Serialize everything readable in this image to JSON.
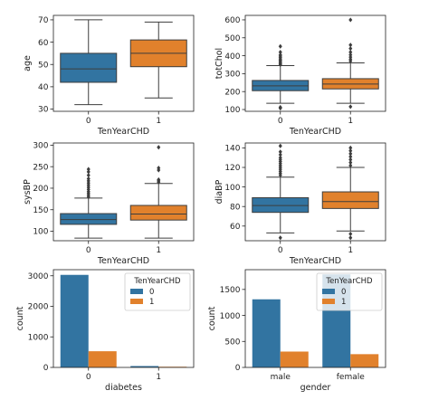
{
  "colors": {
    "class0": "#3274a1",
    "class1": "#e1812c"
  },
  "chart_data": [
    {
      "id": "age",
      "type": "boxplot",
      "xlabel": "TenYearCHD",
      "ylabel": "age",
      "categories": [
        "0",
        "1"
      ],
      "ylim": [
        29,
        72
      ],
      "yticks": [
        30,
        40,
        50,
        60,
        70
      ],
      "boxes": [
        {
          "category": "0",
          "whislo": 32,
          "q1": 42,
          "median": 48,
          "q3": 55,
          "whishi": 70,
          "fliers": []
        },
        {
          "category": "1",
          "whislo": 35,
          "q1": 49,
          "median": 55,
          "q3": 61,
          "whishi": 69,
          "fliers": []
        }
      ]
    },
    {
      "id": "totChol",
      "type": "boxplot",
      "xlabel": "TenYearCHD",
      "ylabel": "totChol",
      "categories": [
        "0",
        "1"
      ],
      "ylim": [
        90,
        625
      ],
      "yticks": [
        100,
        200,
        300,
        400,
        500,
        600
      ],
      "boxes": [
        {
          "category": "0",
          "whislo": 135,
          "q1": 205,
          "median": 232,
          "q3": 262,
          "whishi": 345,
          "fliers": [
            107,
            113,
            350,
            356,
            362,
            368,
            375,
            382,
            390,
            398,
            405,
            420,
            452
          ]
        },
        {
          "category": "1",
          "whislo": 135,
          "q1": 215,
          "median": 242,
          "q3": 272,
          "whishi": 360,
          "fliers": [
            116,
            370,
            380,
            392,
            405,
            420,
            440,
            460,
            600
          ]
        }
      ]
    },
    {
      "id": "sysBP",
      "type": "boxplot",
      "xlabel": "TenYearCHD",
      "ylabel": "sysBP",
      "categories": [
        "0",
        "1"
      ],
      "ylim": [
        78,
        305
      ],
      "yticks": [
        100,
        150,
        200,
        250,
        300
      ],
      "boxes": [
        {
          "category": "0",
          "whislo": 84,
          "q1": 116,
          "median": 127,
          "q3": 141,
          "whishi": 177,
          "fliers": [
            180,
            184,
            188,
            192,
            197,
            202,
            207,
            212,
            217,
            222,
            230,
            238,
            244
          ]
        },
        {
          "category": "1",
          "whislo": 84,
          "q1": 126,
          "median": 140,
          "q3": 160,
          "whishi": 211,
          "fliers": [
            214,
            217,
            220,
            242,
            247,
            295
          ]
        }
      ]
    },
    {
      "id": "diaBP",
      "type": "boxplot",
      "xlabel": "TenYearCHD",
      "ylabel": "diaBP",
      "categories": [
        "0",
        "1"
      ],
      "ylim": [
        45,
        145
      ],
      "yticks": [
        60,
        80,
        100,
        120,
        140
      ],
      "boxes": [
        {
          "category": "0",
          "whislo": 53,
          "q1": 74,
          "median": 81,
          "q3": 89,
          "whishi": 110,
          "fliers": [
            48,
            112,
            114,
            116,
            118,
            120,
            122,
            124,
            126,
            128,
            130,
            133,
            136,
            142
          ]
        },
        {
          "category": "1",
          "whislo": 55,
          "q1": 78,
          "median": 85,
          "q3": 95,
          "whishi": 120,
          "fliers": [
            48,
            52,
            122,
            125,
            128,
            131,
            134,
            137,
            140
          ]
        }
      ]
    },
    {
      "id": "diabetes",
      "type": "bar",
      "xlabel": "diabetes",
      "ylabel": "count",
      "categories": [
        "0",
        "1"
      ],
      "ylim": [
        0,
        3200
      ],
      "yticks": [
        0,
        1000,
        2000,
        3000
      ],
      "legend": {
        "title": "TenYearCHD",
        "placement": "upper right",
        "entries": [
          "0",
          "1"
        ]
      },
      "series": [
        {
          "name": "0",
          "values": [
            3030,
            45
          ]
        },
        {
          "name": "1",
          "values": [
            530,
            22
          ]
        }
      ]
    },
    {
      "id": "gender",
      "type": "bar",
      "xlabel": "gender",
      "ylabel": "count",
      "categories": [
        "male",
        "female"
      ],
      "ylim": [
        0,
        1880
      ],
      "yticks": [
        0,
        500,
        1000,
        1500
      ],
      "legend": {
        "title": "TenYearCHD",
        "placement": "upper right",
        "entries": [
          "0",
          "1"
        ]
      },
      "series": [
        {
          "name": "0",
          "values": [
            1310,
            1790
          ]
        },
        {
          "name": "1",
          "values": [
            305,
            255
          ]
        }
      ]
    }
  ]
}
